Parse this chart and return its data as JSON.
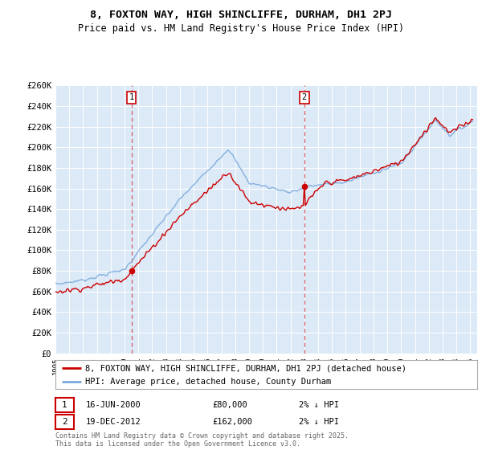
{
  "title_line1": "8, FOXTON WAY, HIGH SHINCLIFFE, DURHAM, DH1 2PJ",
  "title_line2": "Price paid vs. HM Land Registry's House Price Index (HPI)",
  "ylim": [
    0,
    260000
  ],
  "ytick_step": 20000,
  "plot_bg_color": "#dce9f7",
  "hpi_color": "#7aaadd",
  "price_color": "#cc0000",
  "sale1_year": 2000.46,
  "sale1_price": 80000,
  "sale2_year": 2012.97,
  "sale2_price": 162000,
  "legend_label1": "8, FOXTON WAY, HIGH SHINCLIFFE, DURHAM, DH1 2PJ (detached house)",
  "legend_label2": "HPI: Average price, detached house, County Durham",
  "footnote": "Contains HM Land Registry data © Crown copyright and database right 2025.\nThis data is licensed under the Open Government Licence v3.0.",
  "row1_date": "16-JUN-2000",
  "row1_price": "£80,000",
  "row1_note": "2% ↓ HPI",
  "row2_date": "19-DEC-2012",
  "row2_price": "£162,000",
  "row2_note": "2% ↓ HPI",
  "xmin": 1995,
  "xmax": 2025.5
}
